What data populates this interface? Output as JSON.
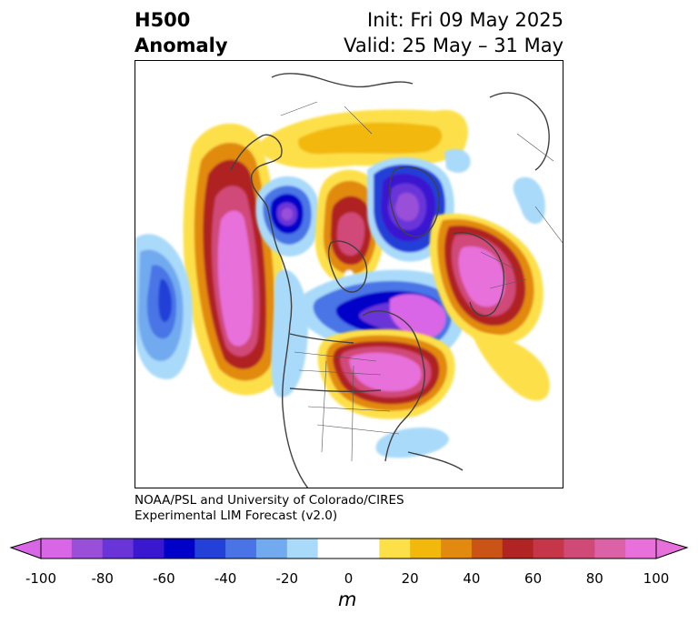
{
  "title": {
    "left_line1": "H500",
    "left_line2": "Anomaly",
    "right_line1": "Init: Fri 09 May 2025",
    "right_line2": "Valid: 25 May – 31 May"
  },
  "credit": {
    "line1": "NOAA/PSL and University of Colorado/CIRES",
    "line2": "Experimental LIM Forecast (v2.0)"
  },
  "colorbar": {
    "unit": "m",
    "ticks": [
      "-100",
      "-80",
      "-60",
      "-40",
      "-20",
      "0",
      "20",
      "40",
      "60",
      "80",
      "100"
    ],
    "colors": [
      "#d966e6",
      "#9a4fd8",
      "#6a35d8",
      "#3a18d0",
      "#0000c8",
      "#2340d8",
      "#4a74e6",
      "#72aaf0",
      "#a9dafa",
      "#ffffff",
      "#ffffff",
      "#fde048",
      "#f2b80b",
      "#e28a10",
      "#c95416",
      "#b02424",
      "#c53648",
      "#d04a78",
      "#dc62a8",
      "#e870da"
    ]
  },
  "map": {
    "anomalies": [
      {
        "label": "positive",
        "center_desc": "NE Pacific ridge"
      },
      {
        "label": "positive",
        "center_desc": "Eastern North America"
      },
      {
        "label": "positive",
        "center_desc": "NE Atlantic / Europe"
      },
      {
        "label": "positive",
        "center_desc": "Arctic Canada"
      },
      {
        "label": "negative",
        "center_desc": "Alaska"
      },
      {
        "label": "negative",
        "center_desc": "Greenland"
      },
      {
        "label": "negative",
        "center_desc": "North Atlantic"
      },
      {
        "label": "negative",
        "center_desc": "Central Pacific"
      }
    ]
  }
}
